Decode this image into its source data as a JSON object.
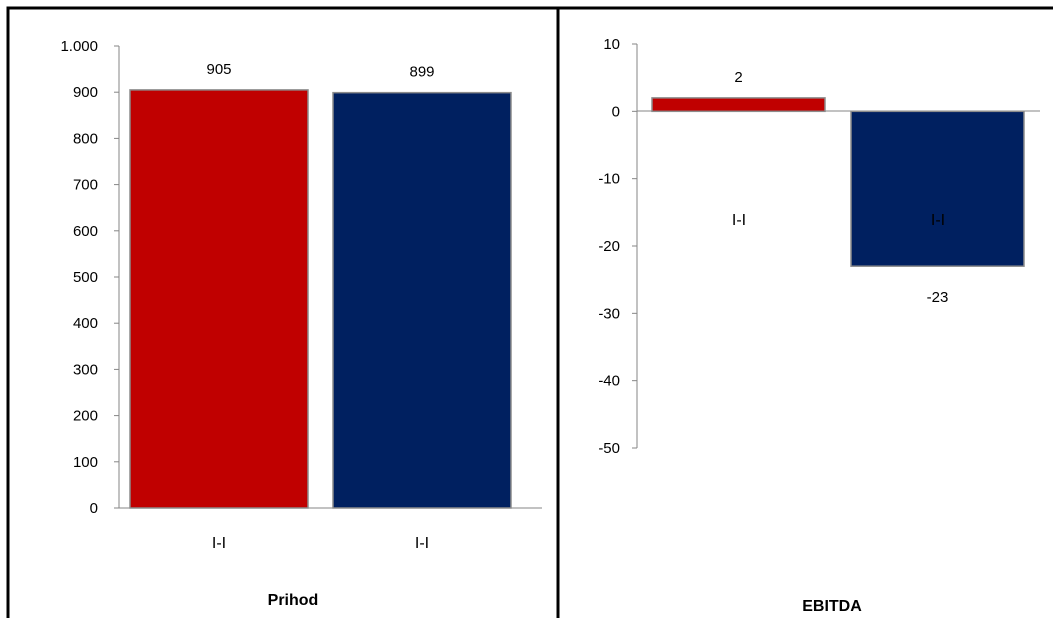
{
  "chart_data": [
    {
      "type": "bar",
      "title": "Prihod",
      "categories": [
        "I-I",
        "I-I"
      ],
      "values": [
        905,
        899
      ],
      "data_labels": [
        "905",
        "899"
      ],
      "colors": [
        "#C00000",
        "#002060"
      ],
      "ylim": [
        0,
        1000
      ],
      "yticks": [
        0,
        100,
        200,
        300,
        400,
        500,
        600,
        700,
        800,
        900,
        1000
      ],
      "ytick_labels": [
        "0",
        "100",
        "200",
        "300",
        "400",
        "500",
        "600",
        "700",
        "800",
        "900",
        "1.000"
      ],
      "grid": false,
      "legend": "none"
    },
    {
      "type": "bar",
      "title": "EBITDA",
      "categories": [
        "I-I",
        "I-I"
      ],
      "values": [
        2,
        -23
      ],
      "data_labels": [
        "2",
        "-23"
      ],
      "colors": [
        "#C00000",
        "#002060"
      ],
      "ylim": [
        -50,
        10
      ],
      "yticks": [
        10,
        0,
        -10,
        -20,
        -30,
        -40,
        -50
      ],
      "ytick_labels": [
        "10",
        "0",
        "-10",
        "-20",
        "-30",
        "-40",
        "-50"
      ],
      "grid": false,
      "legend": "none"
    }
  ]
}
